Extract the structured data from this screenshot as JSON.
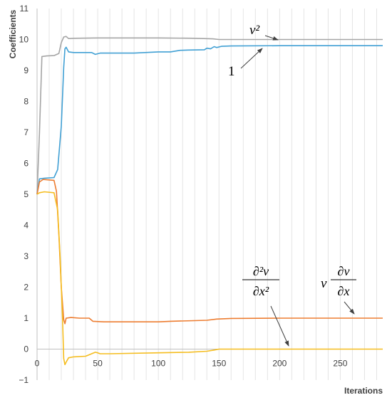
{
  "chart_data": {
    "type": "line",
    "xlabel": "Iterations",
    "ylabel": "Coefficients",
    "xlim": [
      0,
      285
    ],
    "ylim": [
      -1,
      11
    ],
    "x_ticks": [
      0,
      50,
      100,
      150,
      200,
      250
    ],
    "y_ticks": [
      -1,
      0,
      1,
      2,
      3,
      4,
      5,
      6,
      7,
      8,
      9,
      10,
      11
    ],
    "grid": "vertical",
    "series": [
      {
        "color": "#a5a5a5",
        "points": [
          [
            0,
            5
          ],
          [
            2,
            7
          ],
          [
            4,
            9.45
          ],
          [
            8,
            9.47
          ],
          [
            14,
            9.48
          ],
          [
            18,
            9.55
          ],
          [
            20,
            9.9
          ],
          [
            22,
            10.08
          ],
          [
            24,
            10.1
          ],
          [
            26,
            10.03
          ],
          [
            30,
            10.04
          ],
          [
            50,
            10.05
          ],
          [
            100,
            10.05
          ],
          [
            130,
            10.04
          ],
          [
            145,
            10.02
          ],
          [
            150,
            10.0
          ],
          [
            285,
            10.0
          ]
        ]
      },
      {
        "color": "#41a0d4",
        "points": [
          [
            0,
            5
          ],
          [
            2,
            5.5
          ],
          [
            6,
            5.52
          ],
          [
            14,
            5.54
          ],
          [
            17,
            5.8
          ],
          [
            20,
            7.2
          ],
          [
            22,
            9.1
          ],
          [
            23,
            9.7
          ],
          [
            24,
            9.75
          ],
          [
            26,
            9.6
          ],
          [
            30,
            9.58
          ],
          [
            45,
            9.58
          ],
          [
            48,
            9.52
          ],
          [
            52,
            9.56
          ],
          [
            80,
            9.56
          ],
          [
            100,
            9.6
          ],
          [
            110,
            9.6
          ],
          [
            118,
            9.65
          ],
          [
            125,
            9.66
          ],
          [
            138,
            9.67
          ],
          [
            140,
            9.72
          ],
          [
            143,
            9.7
          ],
          [
            146,
            9.77
          ],
          [
            148,
            9.74
          ],
          [
            152,
            9.78
          ],
          [
            160,
            9.79
          ],
          [
            200,
            9.8
          ],
          [
            285,
            9.8
          ]
        ]
      },
      {
        "color": "#ed7d31",
        "points": [
          [
            0,
            5
          ],
          [
            2,
            5.4
          ],
          [
            5,
            5.48
          ],
          [
            14,
            5.45
          ],
          [
            16,
            5.1
          ],
          [
            18,
            3.7
          ],
          [
            20,
            2.0
          ],
          [
            22,
            0.95
          ],
          [
            23,
            0.82
          ],
          [
            24,
            1.0
          ],
          [
            28,
            1.02
          ],
          [
            35,
            1.0
          ],
          [
            43,
            1.0
          ],
          [
            46,
            0.9
          ],
          [
            55,
            0.88
          ],
          [
            100,
            0.88
          ],
          [
            110,
            0.9
          ],
          [
            140,
            0.93
          ],
          [
            148,
            0.97
          ],
          [
            160,
            0.99
          ],
          [
            200,
            1.0
          ],
          [
            285,
            1.0
          ]
        ]
      },
      {
        "color": "#f5bd1f",
        "points": [
          [
            0,
            5
          ],
          [
            2,
            5.05
          ],
          [
            6,
            5.08
          ],
          [
            14,
            5.05
          ],
          [
            17,
            4.5
          ],
          [
            19,
            3.0
          ],
          [
            21,
            1.0
          ],
          [
            22,
            -0.3
          ],
          [
            23,
            -0.5
          ],
          [
            24,
            -0.42
          ],
          [
            26,
            -0.28
          ],
          [
            30,
            -0.25
          ],
          [
            40,
            -0.23
          ],
          [
            45,
            -0.15
          ],
          [
            48,
            -0.1
          ],
          [
            50,
            -0.12
          ],
          [
            52,
            -0.15
          ],
          [
            60,
            -0.15
          ],
          [
            100,
            -0.12
          ],
          [
            125,
            -0.1
          ],
          [
            140,
            -0.07
          ],
          [
            146,
            -0.03
          ],
          [
            150,
            0.0
          ],
          [
            160,
            0.0
          ],
          [
            285,
            0.0
          ]
        ]
      }
    ],
    "annotations": [
      {
        "id": "v2",
        "lines": [
          "v²"
        ]
      },
      {
        "id": "one",
        "lines": [
          "1"
        ]
      },
      {
        "id": "d2v",
        "lines": [
          "∂²v",
          "∂x²"
        ]
      },
      {
        "id": "vdv",
        "lines": [
          "v",
          "∂v",
          "∂x"
        ]
      }
    ]
  }
}
